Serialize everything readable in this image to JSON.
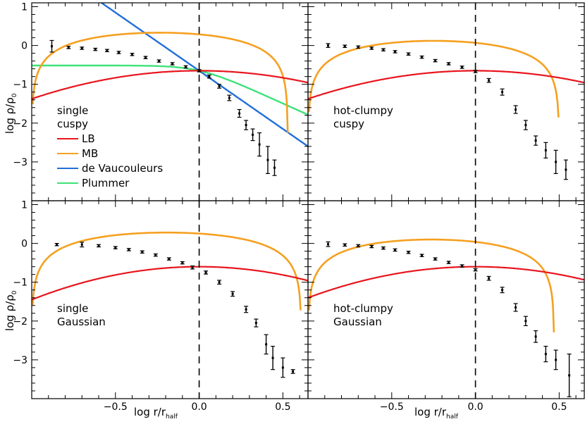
{
  "chart_data": {
    "type": "line",
    "layout": "2x2 grid, shared axes",
    "xlabel": "log r/r",
    "xlabel_sub": "half",
    "ylabel": "log ρ/ρ",
    "ylabel_sub": "0",
    "xlim": [
      -1.0,
      0.65
    ],
    "ylim": [
      -4.0,
      1.1
    ],
    "xticks": [
      -0.5,
      0.0,
      0.5
    ],
    "xtick_labels": [
      "−0.5",
      "0.0",
      "0.5"
    ],
    "yticks": [
      1,
      0,
      -1,
      -2,
      -3
    ],
    "ytick_labels": [
      "1",
      "0",
      "−1",
      "−2",
      "−3"
    ],
    "reference_line": {
      "x": 0.0,
      "style": "dashed"
    },
    "legend": [
      {
        "name": "LB",
        "color": "#e8141c"
      },
      {
        "name": "MB",
        "color": "#f5a020"
      },
      {
        "name": "de Vaucouleurs",
        "color": "#1f6fd8"
      },
      {
        "name": "Plummer",
        "color": "#3ee27a"
      }
    ],
    "panels": [
      {
        "id": "single-cuspy",
        "label_lines": [
          "single",
          "cuspy"
        ],
        "show_legend": true,
        "lb": {
          "a": -0.65,
          "b": 1.45
        },
        "mb": {
          "ymax": 0.33,
          "xmin": -1.0,
          "xmax": 0.53
        },
        "devauc": {
          "c": -0.65,
          "s": -3.0
        },
        "plummer": {
          "c": -0.65,
          "amp": 0.45,
          "k": 10
        },
        "points": [
          {
            "x": -0.88,
            "y": -0.02,
            "err": 0.15
          },
          {
            "x": -0.78,
            "y": -0.05,
            "err": 0.03
          },
          {
            "x": -0.7,
            "y": -0.07,
            "err": 0.03
          },
          {
            "x": -0.62,
            "y": -0.1,
            "err": 0.03
          },
          {
            "x": -0.55,
            "y": -0.13,
            "err": 0.03
          },
          {
            "x": -0.48,
            "y": -0.18,
            "err": 0.03
          },
          {
            "x": -0.4,
            "y": -0.23,
            "err": 0.03
          },
          {
            "x": -0.32,
            "y": -0.31,
            "err": 0.03
          },
          {
            "x": -0.24,
            "y": -0.4,
            "err": 0.03
          },
          {
            "x": -0.16,
            "y": -0.47,
            "err": 0.03
          },
          {
            "x": -0.08,
            "y": -0.55,
            "err": 0.03
          },
          {
            "x": 0.0,
            "y": -0.65,
            "err": 0.03
          },
          {
            "x": 0.06,
            "y": -0.8,
            "err": 0.04
          },
          {
            "x": 0.12,
            "y": -1.05,
            "err": 0.05
          },
          {
            "x": 0.18,
            "y": -1.35,
            "err": 0.07
          },
          {
            "x": 0.24,
            "y": -1.75,
            "err": 0.1
          },
          {
            "x": 0.28,
            "y": -2.05,
            "err": 0.12
          },
          {
            "x": 0.32,
            "y": -2.3,
            "err": 0.15
          },
          {
            "x": 0.36,
            "y": -2.55,
            "err": 0.3
          },
          {
            "x": 0.41,
            "y": -2.95,
            "err": 0.35
          },
          {
            "x": 0.45,
            "y": -3.15,
            "err": 0.2
          }
        ]
      },
      {
        "id": "hot-clumpy-cuspy",
        "label_lines": [
          "hot-clumpy",
          "cuspy"
        ],
        "show_legend": false,
        "lb": {
          "a": -0.65,
          "b": 1.45
        },
        "mb": {
          "ymax": 0.12,
          "xmin": -1.0,
          "xmax": 0.5
        },
        "points": [
          {
            "x": -0.88,
            "y": 0.0,
            "err": 0.05
          },
          {
            "x": -0.78,
            "y": -0.02,
            "err": 0.03
          },
          {
            "x": -0.7,
            "y": -0.04,
            "err": 0.03
          },
          {
            "x": -0.62,
            "y": -0.07,
            "err": 0.03
          },
          {
            "x": -0.55,
            "y": -0.11,
            "err": 0.03
          },
          {
            "x": -0.48,
            "y": -0.16,
            "err": 0.03
          },
          {
            "x": -0.4,
            "y": -0.22,
            "err": 0.03
          },
          {
            "x": -0.32,
            "y": -0.3,
            "err": 0.03
          },
          {
            "x": -0.24,
            "y": -0.39,
            "err": 0.03
          },
          {
            "x": -0.16,
            "y": -0.47,
            "err": 0.03
          },
          {
            "x": -0.08,
            "y": -0.56,
            "err": 0.03
          },
          {
            "x": 0.0,
            "y": -0.67,
            "err": 0.03
          },
          {
            "x": 0.08,
            "y": -0.9,
            "err": 0.05
          },
          {
            "x": 0.16,
            "y": -1.2,
            "err": 0.08
          },
          {
            "x": 0.24,
            "y": -1.65,
            "err": 0.1
          },
          {
            "x": 0.3,
            "y": -2.05,
            "err": 0.12
          },
          {
            "x": 0.36,
            "y": -2.45,
            "err": 0.12
          },
          {
            "x": 0.42,
            "y": -2.7,
            "err": 0.2
          },
          {
            "x": 0.48,
            "y": -3.0,
            "err": 0.3
          },
          {
            "x": 0.54,
            "y": -3.2,
            "err": 0.25
          }
        ]
      },
      {
        "id": "single-gaussian",
        "label_lines": [
          "single",
          "Gaussian"
        ],
        "show_legend": false,
        "lb": {
          "a": -0.6,
          "b": 1.7
        },
        "mb": {
          "ymax": 0.28,
          "xmin": -1.0,
          "xmax": 0.61
        },
        "points": [
          {
            "x": -0.85,
            "y": -0.03,
            "err": 0.03
          },
          {
            "x": -0.7,
            "y": -0.03,
            "err": 0.06
          },
          {
            "x": -0.6,
            "y": -0.06,
            "err": 0.03
          },
          {
            "x": -0.5,
            "y": -0.11,
            "err": 0.03
          },
          {
            "x": -0.42,
            "y": -0.16,
            "err": 0.03
          },
          {
            "x": -0.34,
            "y": -0.22,
            "err": 0.03
          },
          {
            "x": -0.26,
            "y": -0.3,
            "err": 0.03
          },
          {
            "x": -0.18,
            "y": -0.4,
            "err": 0.03
          },
          {
            "x": -0.1,
            "y": -0.5,
            "err": 0.03
          },
          {
            "x": -0.04,
            "y": -0.62,
            "err": 0.04
          },
          {
            "x": 0.04,
            "y": -0.75,
            "err": 0.04
          },
          {
            "x": 0.12,
            "y": -1.0,
            "err": 0.05
          },
          {
            "x": 0.2,
            "y": -1.3,
            "err": 0.06
          },
          {
            "x": 0.28,
            "y": -1.7,
            "err": 0.08
          },
          {
            "x": 0.34,
            "y": -2.05,
            "err": 0.1
          },
          {
            "x": 0.4,
            "y": -2.6,
            "err": 0.25
          },
          {
            "x": 0.44,
            "y": -2.95,
            "err": 0.3
          },
          {
            "x": 0.5,
            "y": -3.2,
            "err": 0.25
          },
          {
            "x": 0.56,
            "y": -3.3,
            "err": 0.05
          }
        ]
      },
      {
        "id": "hot-clumpy-gaussian",
        "label_lines": [
          "hot-clumpy",
          "Gaussian"
        ],
        "show_legend": false,
        "lb": {
          "a": -0.6,
          "b": 1.6
        },
        "mb": {
          "ymax": 0.1,
          "xmin": -1.0,
          "xmax": 0.47
        },
        "points": [
          {
            "x": -0.88,
            "y": -0.02,
            "err": 0.06
          },
          {
            "x": -0.78,
            "y": -0.04,
            "err": 0.03
          },
          {
            "x": -0.7,
            "y": -0.06,
            "err": 0.03
          },
          {
            "x": -0.62,
            "y": -0.08,
            "err": 0.03
          },
          {
            "x": -0.55,
            "y": -0.12,
            "err": 0.03
          },
          {
            "x": -0.48,
            "y": -0.17,
            "err": 0.03
          },
          {
            "x": -0.4,
            "y": -0.23,
            "err": 0.03
          },
          {
            "x": -0.32,
            "y": -0.31,
            "err": 0.03
          },
          {
            "x": -0.24,
            "y": -0.4,
            "err": 0.03
          },
          {
            "x": -0.16,
            "y": -0.49,
            "err": 0.03
          },
          {
            "x": -0.08,
            "y": -0.58,
            "err": 0.03
          },
          {
            "x": 0.0,
            "y": -0.68,
            "err": 0.03
          },
          {
            "x": 0.08,
            "y": -0.9,
            "err": 0.05
          },
          {
            "x": 0.16,
            "y": -1.2,
            "err": 0.07
          },
          {
            "x": 0.24,
            "y": -1.65,
            "err": 0.1
          },
          {
            "x": 0.3,
            "y": -2.0,
            "err": 0.12
          },
          {
            "x": 0.36,
            "y": -2.4,
            "err": 0.15
          },
          {
            "x": 0.42,
            "y": -2.85,
            "err": 0.2
          },
          {
            "x": 0.48,
            "y": -3.0,
            "err": 0.25
          },
          {
            "x": 0.56,
            "y": -3.4,
            "err": 0.55
          }
        ]
      }
    ]
  }
}
